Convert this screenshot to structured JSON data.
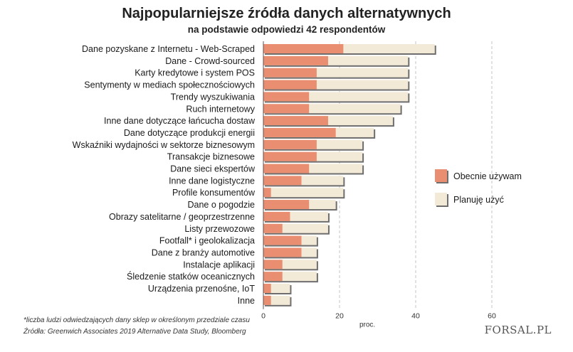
{
  "header": {
    "title": "Najpopularniejsze źródła danych alternatywnych",
    "subtitle": "na podstawie odpowiedzi 42 respondentów"
  },
  "footer": {
    "footnote": "*liczba ludzi odwiedzających dany sklep w określonym przedziale czasu",
    "source": "Źródła:  Greenwich Associates 2019 Alternative Data Study, Bloomberg",
    "brand": "FORSAL.PL"
  },
  "colors": {
    "current": "#e98e70",
    "planned": "#f2e9d6",
    "shadow": "#6e6e6e",
    "grid": "#c4c4c4"
  },
  "chart_data": {
    "type": "bar",
    "orientation": "horizontal",
    "stacked": true,
    "title": "Najpopularniejsze źródła danych alternatywnych",
    "subtitle": "na podstawie odpowiedzi 42 respondentów",
    "xlabel": "proc.",
    "xlim": [
      0,
      60
    ],
    "xticks": [
      0,
      20,
      40,
      60
    ],
    "grid": "vertical-dashed",
    "legend_position": "right",
    "categories": [
      "Dane pozyskane z Internetu - Web-Scraped",
      "Dane - Crowd-sourced",
      "Karty kredytowe i system POS",
      "Sentymenty w mediach społecznościowych",
      "Trendy wyszukiwania",
      "Ruch internetowy",
      "Inne dane dotyczące łańcucha dostaw",
      "Dane dotyczące produkcji energii",
      "Wskaźniki wydajności w sektorze biznesowym",
      "Transakcje biznesowe",
      "Dane sieci ekspertów",
      "Inne dane logistyczne",
      "Profile konsumentów",
      "Dane o pogodzie",
      "Obrazy satelitarne / geoprzestrzenne",
      "Listy przewozowe",
      "Footfall* i geolokalizacja",
      "Dane z branży automotive",
      "Instalacje aplikacji",
      "Śledzenie statków oceanicznych",
      "Urządzenia przenośne, IoT",
      "Inne"
    ],
    "series": [
      {
        "name": "Obecnie używam",
        "values": [
          21,
          17,
          14,
          14,
          12,
          12,
          17,
          19,
          14,
          14,
          12,
          10,
          2,
          12,
          7,
          5,
          10,
          10,
          5,
          5,
          2,
          2
        ]
      },
      {
        "name": "Planuję użyć",
        "values": [
          24,
          21,
          24,
          24,
          26,
          24,
          17,
          10,
          12,
          12,
          14,
          11,
          19,
          7,
          10,
          12,
          4,
          4,
          9,
          9,
          5,
          5
        ]
      }
    ]
  }
}
